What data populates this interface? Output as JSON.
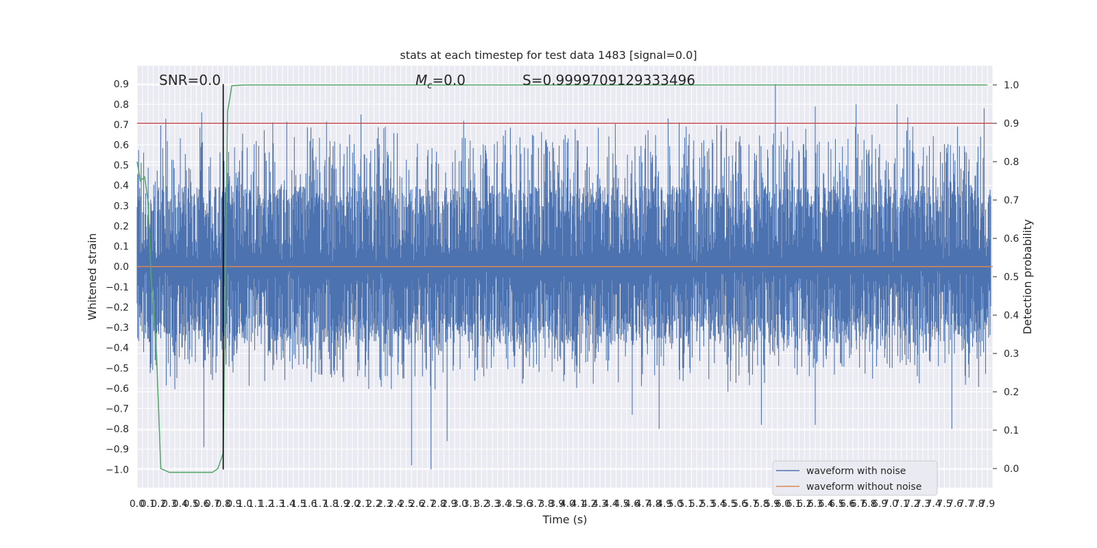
{
  "chart_data": {
    "type": "line",
    "title": "stats at each timestep for test data 1483 [signal=0.0]",
    "xlabel": "Time (s)",
    "ylabel_left": "Whitened strain",
    "ylabel_right": "Detection probability",
    "xlim": [
      0.0,
      7.95
    ],
    "ylim_left": [
      -1.09,
      0.99
    ],
    "ylim_right": [
      -0.05,
      1.05
    ],
    "grid": true,
    "x_tick_step": 0.05,
    "x_ticks": [
      "0.0",
      "0.1",
      "0.2",
      "0.3",
      "0.4",
      "0.5",
      "0.6",
      "0.7",
      "0.8",
      "0.9",
      "1.0",
      "1.1",
      "1.2",
      "1.3",
      "1.4",
      "1.5",
      "1.6",
      "1.7",
      "1.8",
      "1.9",
      "2.0",
      "2.1",
      "2.2",
      "2.3",
      "2.4",
      "2.5",
      "2.6",
      "2.7",
      "2.8",
      "2.9",
      "3.0",
      "3.1",
      "3.2",
      "3.3",
      "3.4",
      "3.5",
      "3.6",
      "3.7",
      "3.8",
      "3.9",
      "4.0",
      "4.1",
      "4.2",
      "4.3",
      "4.4",
      "4.5",
      "4.6",
      "4.7",
      "4.8",
      "4.9",
      "5.0",
      "5.1",
      "5.2",
      "5.3",
      "5.4",
      "5.5",
      "5.6",
      "5.7",
      "5.8",
      "5.9",
      "6.0",
      "6.1",
      "6.2",
      "6.3",
      "6.4",
      "6.5",
      "6.6",
      "6.7",
      "6.8",
      "6.9",
      "7.0",
      "7.1",
      "7.2",
      "7.3",
      "7.4",
      "7.5",
      "7.6",
      "7.7",
      "7.8",
      "7.9"
    ],
    "y_ticks_left": [
      "0.9",
      "0.8",
      "0.7",
      "0.6",
      "0.5",
      "0.4",
      "0.3",
      "0.2",
      "0.1",
      "0.0",
      "−0.1",
      "−0.2",
      "−0.3",
      "−0.4",
      "−0.5",
      "−0.6",
      "−0.7",
      "−0.8",
      "−0.9",
      "−1.0"
    ],
    "y_ticks_right": [
      "1.0",
      "0.9",
      "0.8",
      "0.7",
      "0.6",
      "0.5",
      "0.4",
      "0.3",
      "0.2",
      "0.1",
      "0.0"
    ],
    "annotations": {
      "snr": "SNR=0.0",
      "mc_symbol": "M",
      "mc_sub": "c",
      "mc_value": "=0.0",
      "s_text": "S=0.9999709129333496"
    },
    "legend": [
      "waveform with noise",
      "waveform without noise"
    ],
    "colors": {
      "noise": "#4c72b0",
      "clean": "#dd8452",
      "prob": "#55a868",
      "threshold": "#c44e52",
      "marker": "#000000",
      "bg": "#eaeaf2"
    },
    "threshold_right": 0.9,
    "marker_x": 0.8,
    "marker_y_range": [
      -1.0,
      0.9
    ],
    "noise_envelope": {
      "upper": [
        0.4,
        0.75
      ],
      "lower": [
        -0.38,
        -0.62
      ]
    },
    "noise_peaks": [
      {
        "x": 0.6,
        "y": 0.76
      },
      {
        "x": 0.62,
        "y": -0.89
      },
      {
        "x": 2.08,
        "y": 0.75
      },
      {
        "x": 2.55,
        "y": -0.98
      },
      {
        "x": 2.73,
        "y": -1.0
      },
      {
        "x": 2.88,
        "y": -0.86
      },
      {
        "x": 5.93,
        "y": 0.9
      },
      {
        "x": 6.3,
        "y": 0.79
      },
      {
        "x": 6.68,
        "y": 0.8
      },
      {
        "x": 7.06,
        "y": 0.8
      },
      {
        "x": 7.57,
        "y": -0.8
      },
      {
        "x": 7.87,
        "y": 0.78
      },
      {
        "x": 4.85,
        "y": -0.8
      },
      {
        "x": 4.6,
        "y": -0.73
      },
      {
        "x": 5.8,
        "y": -0.78
      },
      {
        "x": 6.3,
        "y": -0.78
      }
    ],
    "detection_probability": {
      "x": [
        0.0,
        0.03,
        0.07,
        0.1,
        0.13,
        0.18,
        0.22,
        0.3,
        0.4,
        0.5,
        0.6,
        0.7,
        0.75,
        0.8,
        0.84,
        0.88,
        0.93,
        1.0,
        1.5,
        2.0,
        3.0,
        4.0,
        5.0,
        6.0,
        7.0,
        7.9
      ],
      "y": [
        0.8,
        0.75,
        0.76,
        0.7,
        0.5,
        0.3,
        0.0,
        -0.01,
        -0.01,
        -0.01,
        -0.01,
        -0.01,
        0.0,
        0.04,
        0.93,
        0.998,
        0.999,
        1.0,
        1.0,
        1.0,
        1.0,
        1.0,
        1.0,
        1.0,
        1.0,
        1.0
      ]
    }
  }
}
